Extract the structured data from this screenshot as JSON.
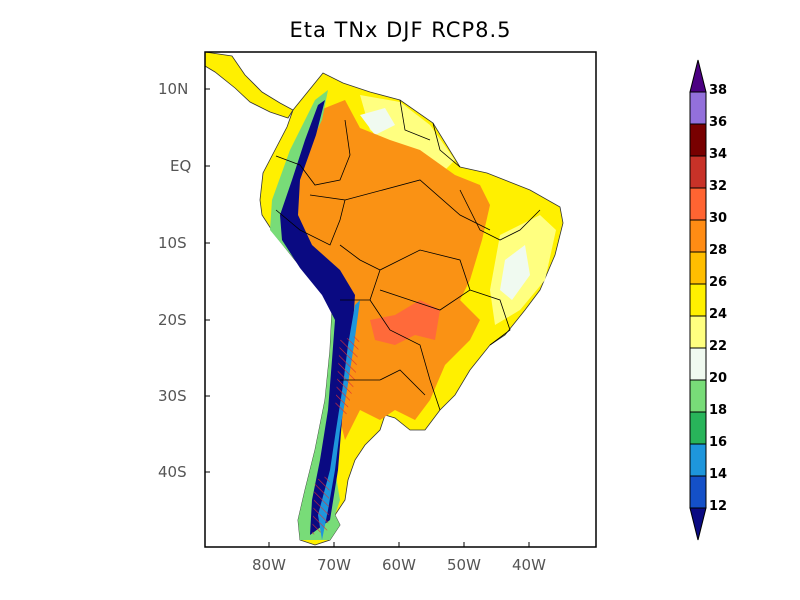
{
  "title": "Eta TNx DJF RCP8.5",
  "lat_labels": [
    "10N",
    "EQ",
    "10S",
    "20S",
    "30S",
    "40S"
  ],
  "lon_labels": [
    "80W",
    "70W",
    "60W",
    "50W",
    "40W"
  ],
  "colorbar": {
    "levels": [
      "12",
      "14",
      "16",
      "18",
      "20",
      "22",
      "24",
      "26",
      "28",
      "30",
      "32",
      "34",
      "36",
      "38"
    ],
    "colors": [
      "#0a0a82",
      "#1450c8",
      "#1e96dc",
      "#28b45a",
      "#78dc78",
      "#f0faf0",
      "#ffff80",
      "#fff000",
      "#ffbe00",
      "#ff8c14",
      "#ff6432",
      "#c83228",
      "#780000",
      "#9370db",
      "#4b0082"
    ]
  },
  "map_colors": {
    "yellow": "#fff000",
    "light_yellow": "#ffff80",
    "orange": "#fa9214",
    "dark_orange": "#ff6a3a",
    "navy": "#0a0a82",
    "blue": "#1450c8",
    "green": "#28b45a",
    "light_green": "#78dc78",
    "pale": "#f0faf0",
    "hatch": "#e03030"
  }
}
